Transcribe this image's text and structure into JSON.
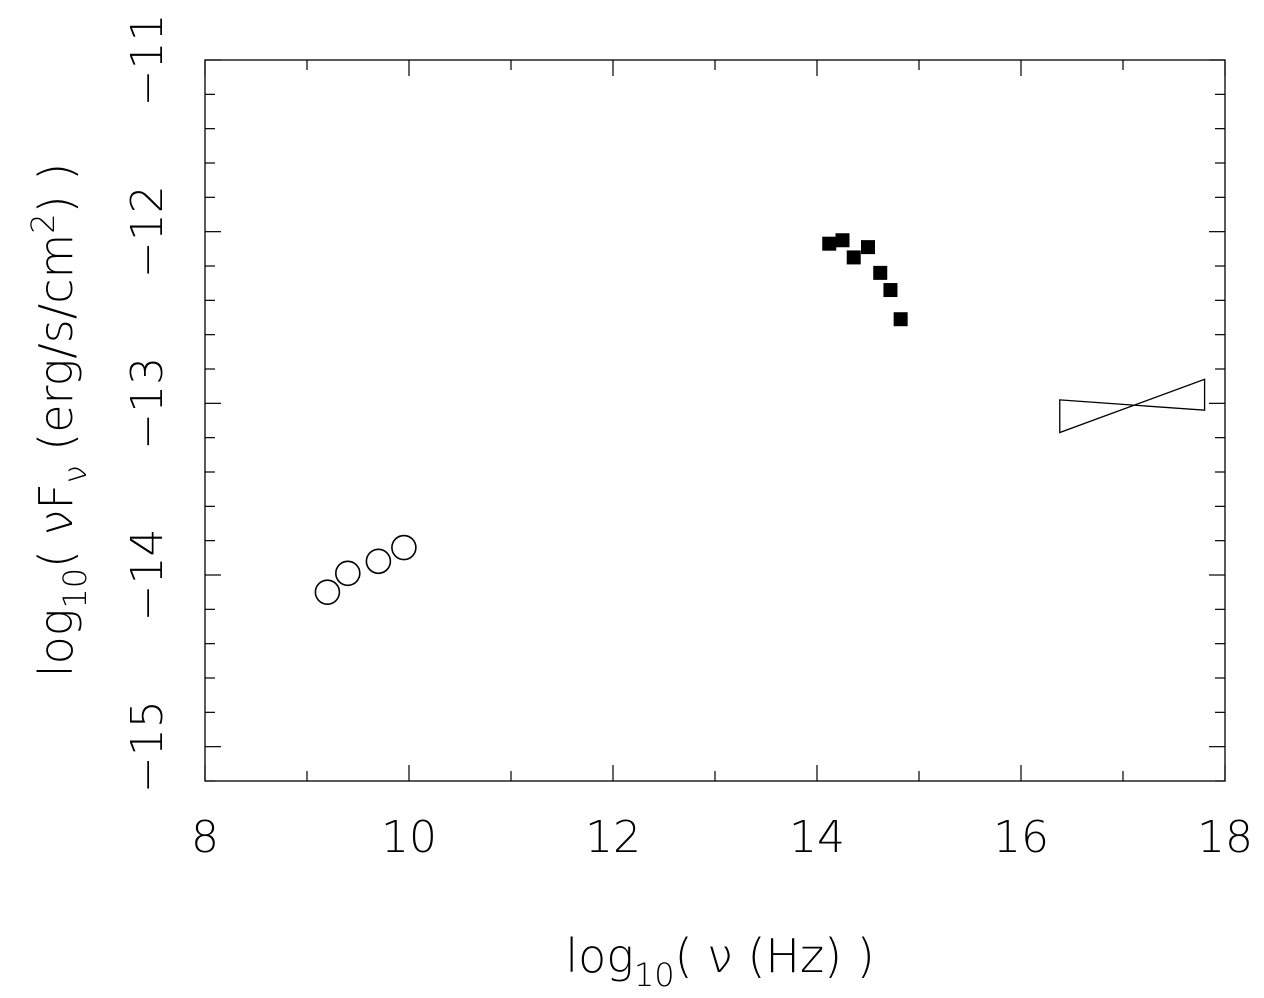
{
  "chart_data": {
    "type": "scatter",
    "title": "",
    "xlabel": {
      "prefix": "log",
      "sub": "10",
      "rest": "( ν (Hz) )"
    },
    "ylabel": {
      "prefix": "log",
      "sub": "10",
      "mid": "( νF",
      "sub2": "ν",
      "rest": " (erg/s/cm",
      "sup": "2",
      "end": ") )"
    },
    "xlim": [
      8,
      18
    ],
    "ylim": [
      -15.2,
      -11
    ],
    "x_ticks": [
      {
        "value": 8,
        "label": "8"
      },
      {
        "value": 10,
        "label": "10"
      },
      {
        "value": 12,
        "label": "12"
      },
      {
        "value": 14,
        "label": "14"
      },
      {
        "value": 16,
        "label": "16"
      },
      {
        "value": 18,
        "label": "18"
      }
    ],
    "x_minor_step": 1,
    "y_ticks": [
      {
        "value": -11,
        "label": "−11"
      },
      {
        "value": -12,
        "label": "−12"
      },
      {
        "value": -13,
        "label": "−13"
      },
      {
        "value": -14,
        "label": "−14"
      },
      {
        "value": -15,
        "label": "−15"
      }
    ],
    "y_minor_step": 0.2,
    "grid": false,
    "series": [
      {
        "marker": "open-circle",
        "points": [
          {
            "x": 9.2,
            "y": -14.1
          },
          {
            "x": 9.4,
            "y": -13.99
          },
          {
            "x": 9.7,
            "y": -13.92
          },
          {
            "x": 9.95,
            "y": -13.84
          }
        ]
      },
      {
        "marker": "filled-square",
        "points": [
          {
            "x": 14.12,
            "y": -12.07
          },
          {
            "x": 14.25,
            "y": -12.05
          },
          {
            "x": 14.36,
            "y": -12.15
          },
          {
            "x": 14.5,
            "y": -12.09
          },
          {
            "x": 14.62,
            "y": -12.24
          },
          {
            "x": 14.72,
            "y": -12.34
          },
          {
            "x": 14.82,
            "y": -12.51
          }
        ]
      }
    ],
    "bowtie": {
      "x1": 16.38,
      "x2": 17.8,
      "y_left_top": -12.98,
      "y_left_bottom": -13.17,
      "y_right_top": -12.86,
      "y_right_bottom": -13.04
    }
  }
}
